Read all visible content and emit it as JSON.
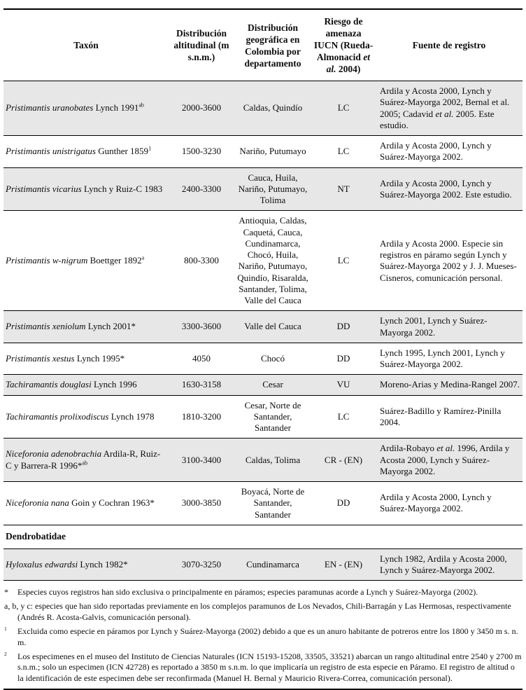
{
  "colors": {
    "row_shade": "#e7e7e7",
    "rule": "#000000",
    "text": "#0d0d0d"
  },
  "table": {
    "headers": {
      "taxon": "Taxón",
      "alt": "Distribución altitudinal (m s.n.m.)",
      "geo": "Distribución geográfica en Colombia por departamento",
      "iucn": [
        {
          "t": "Riesgo de amenaza IUCN (Rueda-Almonacid "
        },
        {
          "t": "et al.",
          "s": "i"
        },
        {
          "t": " 2004)"
        }
      ],
      "fuente": "Fuente de registro"
    },
    "rows": [
      {
        "taxon": [
          {
            "t": "Pristimantis uranobates",
            "s": "i"
          },
          {
            "t": " Lynch 1991"
          },
          {
            "t": "ab",
            "s": "sup"
          }
        ],
        "alt": "2000-3600",
        "geo": "Caldas, Quindío",
        "iucn": "LC",
        "fuente": [
          {
            "t": "Ardila y Acosta 2000, Lynch y Suárez-Mayorga 2002, Bernal et al. 2005; Cadavid "
          },
          {
            "t": "et al.",
            "s": "i"
          },
          {
            "t": " 2005. Este estudio."
          }
        ]
      },
      {
        "taxon": [
          {
            "t": "Pristimantis unistrigatus",
            "s": "i"
          },
          {
            "t": " Gunther 1859"
          },
          {
            "t": "1",
            "s": "sup"
          }
        ],
        "alt": "1500-3230",
        "geo": "Nariño, Putumayo",
        "iucn": "LC",
        "fuente": "Ardila y Acosta 2000, Lynch y Suárez-Mayorga 2002."
      },
      {
        "taxon": [
          {
            "t": "Pristimantis vicarius",
            "s": "i"
          },
          {
            "t": " Lynch y Ruiz-C 1983"
          }
        ],
        "alt": "2400-3300",
        "geo": "Cauca, Huila, Nariño, Putumayo, Tolima",
        "iucn": "NT",
        "fuente": "Ardila y Acosta 2000, Lynch y Suárez-Mayorga 2002. Este estudio."
      },
      {
        "taxon": [
          {
            "t": "Pristimantis w-nigrum",
            "s": "i"
          },
          {
            "t": " Boettger 1892"
          },
          {
            "t": "a",
            "s": "sup"
          }
        ],
        "alt": "800-3300",
        "geo": "Antioquia, Caldas, Caquetá, Cauca, Cundinamarca, Chocó, Huila, Nariño, Putumayo, Quindío, Risaralda, Santander, Tolima, Valle del Cauca",
        "iucn": "LC",
        "fuente": "Ardila y Acosta 2000. Especie sin registros en páramo según Lynch y Suárez-Mayorga 2002 y J. J. Mueses-Cisneros, comunicación personal."
      },
      {
        "taxon": [
          {
            "t": "Pristimantis xeniolum",
            "s": "i"
          },
          {
            "t": " Lynch 2001*"
          }
        ],
        "alt": "3300-3600",
        "geo": "Valle del Cauca",
        "iucn": "DD",
        "fuente": "Lynch 2001, Lynch y Suárez-Mayorga 2002."
      },
      {
        "taxon": [
          {
            "t": "Pristimantis xestus",
            "s": "i"
          },
          {
            "t": " Lynch 1995*"
          }
        ],
        "alt": "4050",
        "geo": "Chocó",
        "iucn": "DD",
        "fuente": "Lynch 1995, Lynch 2001, Lynch y Suárez-Mayorga 2002."
      },
      {
        "taxon": [
          {
            "t": "Tachiramantis douglasi",
            "s": "i"
          },
          {
            "t": " Lynch 1996"
          }
        ],
        "alt": "1630-3158",
        "geo": "Cesar",
        "iucn": "VU",
        "fuente": "Moreno-Arias y Medina-Rangel 2007."
      },
      {
        "taxon": [
          {
            "t": "Tachiramantis prolixodiscus",
            "s": "i"
          },
          {
            "t": " Lynch 1978"
          }
        ],
        "alt": "1810-3200",
        "geo": "Cesar, Norte de Santander, Santander",
        "iucn": "LC",
        "fuente": "Suárez-Badillo y Ramírez-Pinilla 2004."
      },
      {
        "taxon": [
          {
            "t": "Niceforonia adenobrachia",
            "s": "i"
          },
          {
            "t": " Ardila-R, Ruiz-C y Barrera-R 1996*"
          },
          {
            "t": "ab",
            "s": "sup"
          }
        ],
        "alt": "3100-3400",
        "geo": "Caldas, Tolima",
        "iucn": "CR - (EN)",
        "fuente": [
          {
            "t": "Ardila-Robayo "
          },
          {
            "t": "et al.",
            "s": "i"
          },
          {
            "t": " 1996, Ardila y Acosta 2000, Lynch y Suárez-Mayorga 2002."
          }
        ]
      },
      {
        "taxon": [
          {
            "t": "Niceforonia nana",
            "s": "i"
          },
          {
            "t": " Goin y Cochran 1963*"
          }
        ],
        "alt": "3000-3850",
        "geo": "Boyacá, Norte de Santander, Santander",
        "iucn": "DD",
        "fuente": "Ardila y Acosta 2000, Lynch y Suárez-Mayorga 2002."
      },
      {
        "taxon": [
          {
            "t": "Hyloxalus edwardsi",
            "s": "i"
          },
          {
            "t": " Lynch 1982*"
          }
        ],
        "alt": "3070-3250",
        "geo": "Cundinamarca",
        "iucn": "EN - (EN)",
        "fuente": "Lynch 1982, Ardila y Acosta 2000, Lynch y Suárez-Mayorga 2002."
      }
    ],
    "section": {
      "label": "Dendrobatidae"
    }
  },
  "footnotes": [
    {
      "marker": [
        {
          "t": "*"
        }
      ],
      "text": "Especies cuyos registros han sido exclusiva o principalmente en páramos; especies paramunas acorde a Lynch y Suárez-Mayorga (2002)."
    },
    {
      "marker": [],
      "text": "a, b, y c: especies que han sido reportadas previamente en los complejos paramunos de Los Nevados, Chili-Barragán y Las Hermosas, respectivamente (Andrés R. Acosta-Galvis, comunicación personal)."
    },
    {
      "marker": [
        {
          "t": "1",
          "s": "sup"
        }
      ],
      "text": "Excluida como especie en páramos por Lynch y Suárez-Mayorga (2002) debido a que es un anuro habitante de potreros entre los 1800 y 3450 m s. n. m."
    },
    {
      "marker": [
        {
          "t": "2",
          "s": "sup"
        }
      ],
      "text": "Los especimenes en el museo del Instituto de Ciencias Naturales (ICN 15193-15208, 33505, 33521) abarcan un rango altitudinal entre 2540 y 2700 m s.n.m.; solo un especimen (ICN 42728) es reportado a 3850 m s.n.m. lo que implicaría un registro de esta especie en Páramo. El registro de altitud o la identificación de este especimen debe ser reconfirmada (Manuel H. Bernal y Mauricio Rivera-Correa, comunicación personal)."
    }
  ]
}
